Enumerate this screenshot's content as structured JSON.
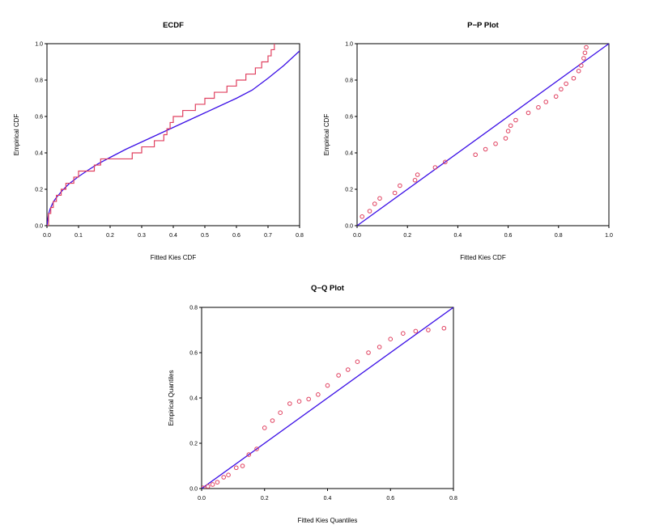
{
  "colors": {
    "fit": "#3b0fe6",
    "empirical": "#e0405f",
    "axis": "#000000"
  },
  "chart_data": [
    {
      "id": "ecdf",
      "type": "line",
      "title": "ECDF",
      "xlabel": "Fitted Kies CDF",
      "ylabel": "Empirical CDF",
      "xlim": [
        0,
        0.8
      ],
      "ylim": [
        0,
        1.0
      ],
      "xticks": [
        "0.0",
        "0.1",
        "0.2",
        "0.3",
        "0.4",
        "0.5",
        "0.6",
        "0.7",
        "0.8"
      ],
      "yticks": [
        "0.0",
        "0.2",
        "0.4",
        "0.6",
        "0.8",
        "1.0"
      ],
      "xtick_values": [
        0,
        0.1,
        0.2,
        0.3,
        0.4,
        0.5,
        0.6,
        0.7,
        0.8
      ],
      "ytick_values": [
        0,
        0.2,
        0.4,
        0.6,
        0.8,
        1.0
      ],
      "series": [
        {
          "name": "Fitted Kies CDF",
          "kind": "curve",
          "x": [
            0,
            0.005,
            0.01,
            0.02,
            0.03,
            0.05,
            0.07,
            0.1,
            0.13,
            0.16,
            0.2,
            0.25,
            0.3,
            0.35,
            0.4,
            0.45,
            0.5,
            0.55,
            0.6,
            0.65,
            0.7,
            0.75,
            0.8
          ],
          "y": [
            0,
            0.065,
            0.092,
            0.13,
            0.155,
            0.196,
            0.23,
            0.27,
            0.305,
            0.338,
            0.375,
            0.42,
            0.46,
            0.5,
            0.54,
            0.58,
            0.62,
            0.66,
            0.7,
            0.745,
            0.81,
            0.88,
            0.96
          ]
        },
        {
          "name": "Empirical CDF",
          "kind": "step",
          "x": [
            0,
            0.005,
            0.012,
            0.02,
            0.03,
            0.045,
            0.06,
            0.085,
            0.1,
            0.15,
            0.17,
            0.27,
            0.3,
            0.34,
            0.37,
            0.38,
            0.39,
            0.4,
            0.43,
            0.47,
            0.5,
            0.53,
            0.57,
            0.6,
            0.63,
            0.66,
            0.68,
            0.7,
            0.71,
            0.72
          ],
          "y": [
            0,
            0.067,
            0.1,
            0.133,
            0.167,
            0.2,
            0.233,
            0.267,
            0.3,
            0.333,
            0.367,
            0.4,
            0.433,
            0.467,
            0.5,
            0.533,
            0.567,
            0.6,
            0.633,
            0.667,
            0.7,
            0.733,
            0.767,
            0.8,
            0.833,
            0.867,
            0.9,
            0.933,
            0.967,
            1.0
          ]
        }
      ]
    },
    {
      "id": "pp",
      "type": "scatter",
      "title": "P−P Plot",
      "xlabel": "Fitted Kies CDF",
      "ylabel": "Empirical CDF",
      "xlim": [
        0,
        1.0
      ],
      "ylim": [
        0,
        1.0
      ],
      "xticks": [
        "0.0",
        "0.2",
        "0.4",
        "0.6",
        "0.8",
        "1.0"
      ],
      "yticks": [
        "0.0",
        "0.2",
        "0.4",
        "0.6",
        "0.8",
        "1.0"
      ],
      "xtick_values": [
        0,
        0.2,
        0.4,
        0.6,
        0.8,
        1.0
      ],
      "ytick_values": [
        0,
        0.2,
        0.4,
        0.6,
        0.8,
        1.0
      ],
      "series": [
        {
          "name": "Reference line",
          "kind": "line",
          "x": [
            0,
            1.0
          ],
          "y": [
            0,
            1.0
          ]
        },
        {
          "name": "Points",
          "kind": "points",
          "x": [
            0.02,
            0.05,
            0.07,
            0.09,
            0.15,
            0.17,
            0.23,
            0.24,
            0.31,
            0.35,
            0.47,
            0.51,
            0.55,
            0.59,
            0.6,
            0.61,
            0.63,
            0.68,
            0.72,
            0.75,
            0.79,
            0.81,
            0.83,
            0.86,
            0.88,
            0.89,
            0.9,
            0.905,
            0.91
          ],
          "y": [
            0.05,
            0.08,
            0.12,
            0.15,
            0.18,
            0.22,
            0.25,
            0.28,
            0.32,
            0.35,
            0.39,
            0.42,
            0.45,
            0.48,
            0.52,
            0.55,
            0.58,
            0.62,
            0.65,
            0.68,
            0.71,
            0.75,
            0.78,
            0.81,
            0.85,
            0.88,
            0.92,
            0.95,
            0.98
          ]
        }
      ]
    },
    {
      "id": "qq",
      "type": "scatter",
      "title": "Q−Q Plot",
      "xlabel": "Fitted Kies Quantiles",
      "ylabel": "Empirical Quantiles",
      "xlim": [
        0,
        0.8
      ],
      "ylim": [
        0,
        0.8
      ],
      "xticks": [
        "0.0",
        "0.2",
        "0.4",
        "0.6",
        "0.8"
      ],
      "yticks": [
        "0.0",
        "0.2",
        "0.4",
        "0.6",
        "0.8"
      ],
      "xtick_values": [
        0,
        0.2,
        0.4,
        0.6,
        0.8
      ],
      "ytick_values": [
        0,
        0.2,
        0.4,
        0.6,
        0.8
      ],
      "series": [
        {
          "name": "Reference line",
          "kind": "line",
          "x": [
            0,
            0.8
          ],
          "y": [
            0,
            0.8
          ]
        },
        {
          "name": "Points",
          "kind": "points",
          "x": [
            0.005,
            0.02,
            0.035,
            0.05,
            0.07,
            0.085,
            0.11,
            0.13,
            0.15,
            0.175,
            0.2,
            0.225,
            0.25,
            0.28,
            0.31,
            0.34,
            0.37,
            0.4,
            0.435,
            0.465,
            0.495,
            0.53,
            0.565,
            0.6,
            0.64,
            0.68,
            0.72,
            0.77
          ],
          "y": [
            0.003,
            0.01,
            0.018,
            0.028,
            0.05,
            0.06,
            0.092,
            0.1,
            0.15,
            0.175,
            0.268,
            0.3,
            0.335,
            0.375,
            0.385,
            0.395,
            0.415,
            0.455,
            0.5,
            0.525,
            0.56,
            0.6,
            0.625,
            0.66,
            0.685,
            0.695,
            0.7,
            0.708
          ]
        }
      ]
    }
  ]
}
